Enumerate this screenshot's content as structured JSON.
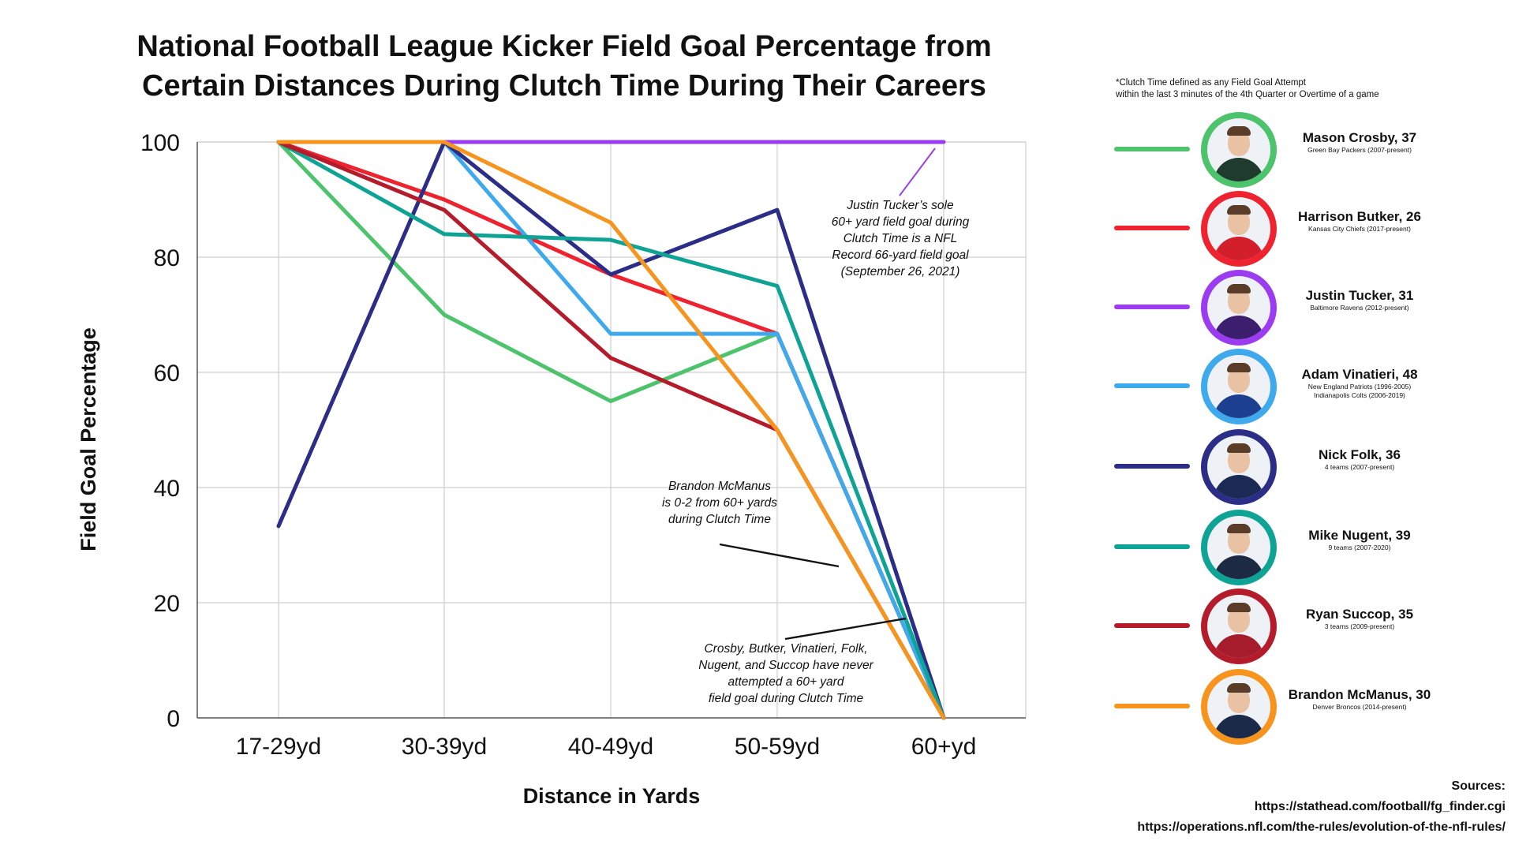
{
  "chart_data": {
    "type": "line",
    "title": [
      "National Football League Kicker Field Goal Percentage from",
      "Certain Distances During Clutch Time During Their Careers"
    ],
    "xlabel": "Distance in Yards",
    "ylabel": "Field Goal Percentage",
    "categories": [
      "17-29yd",
      "30-39yd",
      "40-49yd",
      "50-59yd",
      "60+yd"
    ],
    "ylim": [
      0,
      100
    ],
    "yticks": [
      0,
      20,
      40,
      60,
      80,
      100
    ],
    "grid": true,
    "legend_position": "right",
    "series": [
      {
        "name": "Mason Crosby, 37",
        "color": "#4dc36c",
        "values": [
          100,
          70,
          55,
          66.7,
          0
        ]
      },
      {
        "name": "Harrison Butker, 26",
        "color": "#ef2230",
        "values": [
          100,
          90,
          77,
          66.7,
          0
        ]
      },
      {
        "name": "Justin Tucker, 31",
        "color": "#9b3cf0",
        "values": [
          100,
          100,
          100,
          100,
          100
        ]
      },
      {
        "name": "Adam Vinatieri, 48",
        "color": "#3fa9ee",
        "values": [
          100,
          100,
          66.7,
          66.7,
          0
        ]
      },
      {
        "name": "Nick Folk, 36",
        "color": "#2b2d86",
        "values": [
          33.3,
          100,
          77,
          88.2,
          0
        ]
      },
      {
        "name": "Mike Nugent, 39",
        "color": "#0fa396",
        "values": [
          100,
          84,
          83,
          75,
          0
        ]
      },
      {
        "name": "Ryan Succop, 35",
        "color": "#b51c2b",
        "values": [
          100,
          88.2,
          62.5,
          50,
          0
        ]
      },
      {
        "name": "Brandon McManus, 30",
        "color": "#f7941d",
        "values": [
          100,
          100,
          86,
          50,
          0
        ]
      }
    ]
  },
  "annotations": {
    "tucker": [
      "Justin Tucker’s sole",
      "60+ yard field goal during",
      "Clutch Time is a NFL",
      "Record 66-yard field goal",
      "(September 26, 2021)"
    ],
    "mcmanus": [
      "Brandon McManus",
      "is 0-2 from 60+ yards",
      "during Clutch Time"
    ],
    "others": [
      "Crosby, Butker, Vinatieri, Folk,",
      "Nugent, and Succop have never",
      "attempted a 60+ yard",
      "field goal during Clutch Time"
    ]
  },
  "footnote": [
    "*Clutch Time defined as any Field Goal Attempt",
    "within the last 3 minutes of the 4th Quarter or Overtime of a game"
  ],
  "legend": [
    {
      "name": "Mason Crosby, 37",
      "teams": [
        "Green Bay Packers (2007-present)"
      ],
      "color": "#4dc36c",
      "jersey": "#1f3b2d"
    },
    {
      "name": "Harrison Butker, 26",
      "teams": [
        "Kansas City Chiefs (2017-present)"
      ],
      "color": "#ef2230",
      "jersey": "#d21f2b"
    },
    {
      "name": "Justin Tucker, 31",
      "teams": [
        "Baltimore Ravens (2012-present)"
      ],
      "color": "#9b3cf0",
      "jersey": "#3b1f6e"
    },
    {
      "name": "Adam Vinatieri, 48",
      "teams": [
        "New England Patriots (1996-2005)",
        "Indianapolis Colts (2006-2019)"
      ],
      "color": "#3fa9ee",
      "jersey": "#1d3f8f"
    },
    {
      "name": "Nick Folk, 36",
      "teams": [
        "4 teams (2007-present)"
      ],
      "color": "#2b2d86",
      "jersey": "#1a2a55"
    },
    {
      "name": "Mike Nugent, 39",
      "teams": [
        "9 teams (2007-2020)"
      ],
      "color": "#0fa396",
      "jersey": "#1c2a44"
    },
    {
      "name": "Ryan Succop, 35",
      "teams": [
        "3 teams (2009-present)"
      ],
      "color": "#b51c2b",
      "jersey": "#a51d2d"
    },
    {
      "name": "Brandon McManus, 30",
      "teams": [
        "Denver Broncos (2014-present)"
      ],
      "color": "#f7941d",
      "jersey": "#1c2a4a"
    }
  ],
  "sources": [
    "Sources:",
    "https://stathead.com/football/fg_finder.cgi",
    "https://operations.nfl.com/the-rules/evolution-of-the-nfl-rules/"
  ]
}
